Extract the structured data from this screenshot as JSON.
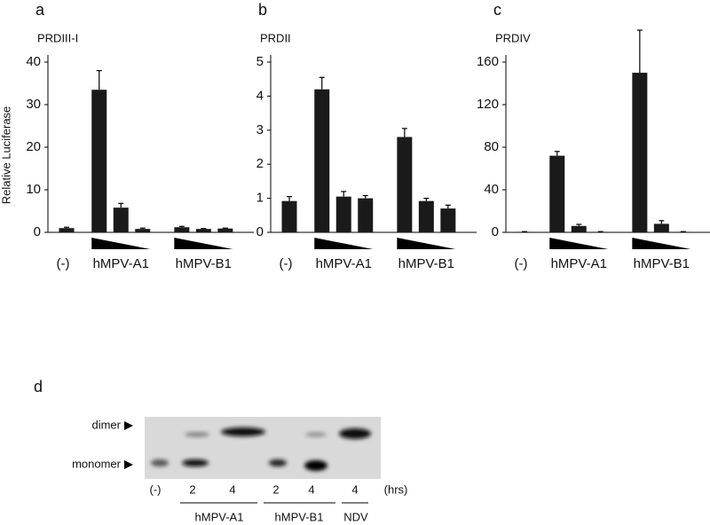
{
  "chart_data": [
    {
      "type": "bar",
      "panel": "a",
      "title": "PRDIII-I",
      "ylabel": "Relative Luciferase",
      "categories": [
        "(-)",
        null,
        "hMPV-A1",
        null,
        null,
        "hMPV-B1",
        null
      ],
      "values": [
        1,
        33.5,
        5.8,
        0.8,
        1.2,
        0.8,
        0.9
      ],
      "errors": [
        0.2,
        4.5,
        1,
        0.2,
        0.2,
        0.1,
        0.1
      ],
      "color": "#1a1a1a",
      "ylim": [
        0,
        40
      ],
      "yticks": [
        0,
        10,
        20,
        30,
        40
      ]
    },
    {
      "type": "bar",
      "panel": "b",
      "title": "PRDII",
      "categories": [
        "(-)",
        null,
        "hMPV-A1",
        null,
        null,
        "hMPV-B1",
        null
      ],
      "values": [
        0.92,
        4.2,
        1.05,
        1.0,
        2.8,
        0.92,
        0.7
      ],
      "errors": [
        0.13,
        0.35,
        0.15,
        0.08,
        0.25,
        0.08,
        0.1
      ],
      "color": "#1a1a1a",
      "ylim": [
        0,
        5
      ],
      "yticks": [
        0,
        1,
        2,
        3,
        4,
        5
      ]
    },
    {
      "type": "bar",
      "panel": "c",
      "title": "PRDIV",
      "categories": [
        "(-)",
        null,
        "hMPV-A1",
        null,
        null,
        "hMPV-B1",
        null
      ],
      "values": [
        0.5,
        72,
        6,
        0.5,
        150,
        8,
        0.5
      ],
      "errors": [
        0.2,
        4,
        1.5,
        0.2,
        40,
        3,
        0.2
      ],
      "color": "#1a1a1a",
      "ylim": [
        0,
        160
      ],
      "yticks": [
        0,
        40,
        80,
        120,
        160
      ]
    }
  ],
  "blot": {
    "panel": "d",
    "markers": [
      "dimer",
      "monomer"
    ],
    "lanes": [
      "(-)",
      "2",
      "4",
      "2",
      "4",
      "4",
      "(hrs)"
    ],
    "groups": [
      "hMPV-A1",
      "hMPV-B1",
      "NDV"
    ]
  }
}
